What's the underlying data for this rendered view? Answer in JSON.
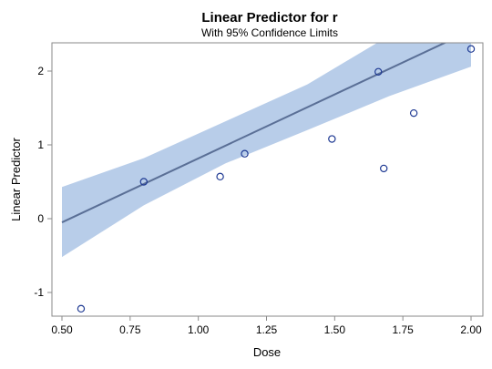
{
  "chart_data": {
    "type": "line",
    "title": "Linear Predictor for r",
    "subtitle": "With 95% Confidence Limits",
    "xlabel": "Dose",
    "ylabel": "Linear Predictor",
    "xlim": [
      0.5,
      2.0
    ],
    "ylim": [
      -1.3,
      2.4
    ],
    "xticks": [
      "0.50",
      "0.75",
      "1.00",
      "1.25",
      "1.50",
      "1.75",
      "2.00"
    ],
    "yticks": [
      "-1",
      "0",
      "1",
      "2"
    ],
    "grid": false,
    "legend": "none",
    "fit_line": {
      "x": [
        0.5,
        2.0
      ],
      "y": [
        -0.05,
        2.55
      ]
    },
    "confidence_band": {
      "x": [
        0.5,
        0.8,
        1.1,
        1.4,
        1.7,
        2.0
      ],
      "lower": [
        -0.52,
        0.18,
        0.75,
        1.2,
        1.66,
        2.06
      ],
      "upper": [
        0.43,
        0.82,
        1.32,
        1.82,
        2.48,
        3.0
      ]
    },
    "points": {
      "x": [
        0.57,
        0.8,
        1.08,
        1.17,
        1.49,
        1.66,
        1.68,
        1.79,
        2.0
      ],
      "y": [
        -1.22,
        0.5,
        0.57,
        0.88,
        1.08,
        1.99,
        0.68,
        1.43,
        2.3
      ]
    },
    "colors": {
      "band": "#b8cde9",
      "line": "#5a6f96",
      "marker": "#1f3a93",
      "frame": "#8a8a8a"
    }
  }
}
